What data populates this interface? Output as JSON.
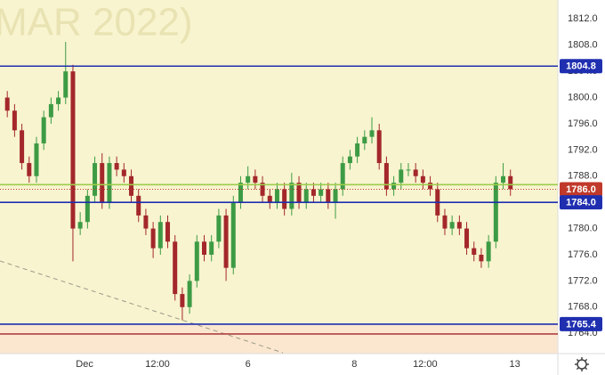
{
  "chart_data": {
    "type": "candlestick",
    "watermark": "MAR 2022)",
    "x": [
      0,
      1,
      2,
      3,
      4,
      5,
      6,
      7,
      8,
      9,
      10,
      11,
      12,
      13,
      14,
      15,
      16,
      17,
      18,
      19,
      20,
      21,
      22,
      23,
      24,
      25,
      26,
      27,
      28,
      29,
      30,
      31,
      32,
      33,
      34,
      35,
      36,
      37,
      38,
      39,
      40,
      41,
      42,
      43,
      44,
      45,
      46,
      47,
      48,
      49,
      50,
      51,
      52,
      53,
      54,
      55,
      56,
      57,
      58,
      59,
      60,
      61,
      62,
      63,
      64,
      65,
      66,
      67,
      68,
      69
    ],
    "open": [
      1800,
      1798,
      1795,
      1790,
      1788,
      1793,
      1797,
      1799,
      1800,
      1804,
      1780,
      1781,
      1785,
      1790,
      1784,
      1790,
      1789,
      1788,
      1785,
      1782,
      1780,
      1777,
      1781,
      1778,
      1770,
      1768,
      1772,
      1778,
      1776,
      1778,
      1782,
      1774,
      1784,
      1787,
      1788,
      1787,
      1785,
      1784,
      1786,
      1783,
      1787,
      1784,
      1786,
      1785,
      1786,
      1784,
      1786,
      1790,
      1791,
      1793,
      1794,
      1795,
      1790,
      1786,
      1787,
      1789,
      1789,
      1788,
      1787,
      1786,
      1782,
      1780,
      1781,
      1780,
      1777,
      1776,
      1775,
      1778,
      1787,
      1788
    ],
    "high": [
      1801,
      1799,
      1796,
      1791,
      1794,
      1798,
      1800,
      1801,
      1808.5,
      1805,
      1782.5,
      1786,
      1791,
      1791.5,
      1791,
      1791,
      1790,
      1789,
      1786,
      1783,
      1781,
      1782,
      1782,
      1779,
      1771,
      1773,
      1779,
      1779,
      1779,
      1783,
      1783,
      1785,
      1788,
      1789.5,
      1789,
      1788,
      1786,
      1787,
      1787,
      1788.5,
      1788,
      1787,
      1787,
      1787,
      1787,
      1787,
      1791,
      1792,
      1794,
      1795,
      1797,
      1796,
      1791,
      1788,
      1790,
      1790,
      1790,
      1789,
      1788,
      1787,
      1783,
      1782,
      1782,
      1781,
      1778,
      1777,
      1779,
      1788,
      1790,
      1789
    ],
    "low": [
      1797,
      1794,
      1789,
      1787,
      1787,
      1792,
      1796,
      1798,
      1799,
      1775,
      1779,
      1780,
      1784,
      1783,
      1783,
      1788,
      1787,
      1784,
      1781,
      1779,
      1775.5,
      1776,
      1777,
      1769,
      1766,
      1767,
      1771,
      1775,
      1775,
      1777,
      1772,
      1773,
      1783,
      1786,
      1786,
      1784,
      1783,
      1783,
      1782,
      1782,
      1783,
      1783,
      1784,
      1784,
      1783,
      1781.5,
      1785,
      1789,
      1790,
      1792,
      1793,
      1789,
      1785,
      1785,
      1786,
      1788,
      1787,
      1786,
      1785,
      1781,
      1779,
      1779,
      1779,
      1776,
      1775,
      1774,
      1774,
      1777,
      1786,
      1785
    ],
    "close": [
      1798,
      1795,
      1790,
      1788,
      1793,
      1797,
      1799,
      1800,
      1804,
      1780,
      1781,
      1785,
      1790,
      1784,
      1790,
      1789,
      1788,
      1785,
      1782,
      1780,
      1777,
      1781,
      1778,
      1770,
      1768,
      1772,
      1778,
      1776,
      1778,
      1782,
      1774,
      1784,
      1787,
      1788,
      1787,
      1785,
      1784,
      1786,
      1783,
      1787,
      1784,
      1786,
      1785,
      1786,
      1784,
      1786,
      1790,
      1791,
      1793,
      1794,
      1795,
      1790,
      1786,
      1787,
      1789,
      1789,
      1788,
      1787,
      1786,
      1782,
      1780,
      1781,
      1780,
      1777,
      1776,
      1775,
      1778,
      1787,
      1788,
      1786
    ],
    "up_color": "#3d9b45",
    "down_color": "#a3272b",
    "xlim": [
      -1,
      75.5
    ],
    "xticks": [
      {
        "value": 10.6,
        "label": "Dec"
      },
      {
        "value": 20.6,
        "label": "12:00"
      },
      {
        "value": 33,
        "label": "6"
      },
      {
        "value": 47.6,
        "label": "8"
      },
      {
        "value": 57.3,
        "label": "12:00"
      },
      {
        "value": 69.6,
        "label": "13"
      }
    ],
    "ylim": [
      1760.9,
      1814.9
    ],
    "yticks": [
      {
        "value": 1764,
        "label": "1764.0"
      },
      {
        "value": 1768,
        "label": "1768.0"
      },
      {
        "value": 1772,
        "label": "1772.0"
      },
      {
        "value": 1776,
        "label": "1776.0"
      },
      {
        "value": 1780,
        "label": "1780.0"
      },
      {
        "value": 1784,
        "label": "1784.0"
      },
      {
        "value": 1788,
        "label": "1788.0"
      },
      {
        "value": 1792,
        "label": "1792.0"
      },
      {
        "value": 1796,
        "label": "1796.0"
      },
      {
        "value": 1800,
        "label": "1800.0"
      },
      {
        "value": 1804,
        "label": "1804.0"
      },
      {
        "value": 1808,
        "label": "1808.0"
      },
      {
        "value": 1812,
        "label": "1812.0"
      }
    ],
    "grid": false,
    "levels": [
      {
        "value": 1804.8,
        "label": "1804.8",
        "color": "#1f2fb0"
      },
      {
        "value": 1786.7,
        "color": "#9ccc4c"
      },
      {
        "value": 1786,
        "label": "1786.0",
        "color": "#c0392b",
        "style": "dotted"
      },
      {
        "value": 1784,
        "label": "1784.0",
        "color": "#1f2fb0"
      },
      {
        "value": 1765.4,
        "label": "1765.4",
        "color": "#1f2fb0"
      },
      {
        "value": 1763.9,
        "color": "#b04040"
      }
    ]
  }
}
